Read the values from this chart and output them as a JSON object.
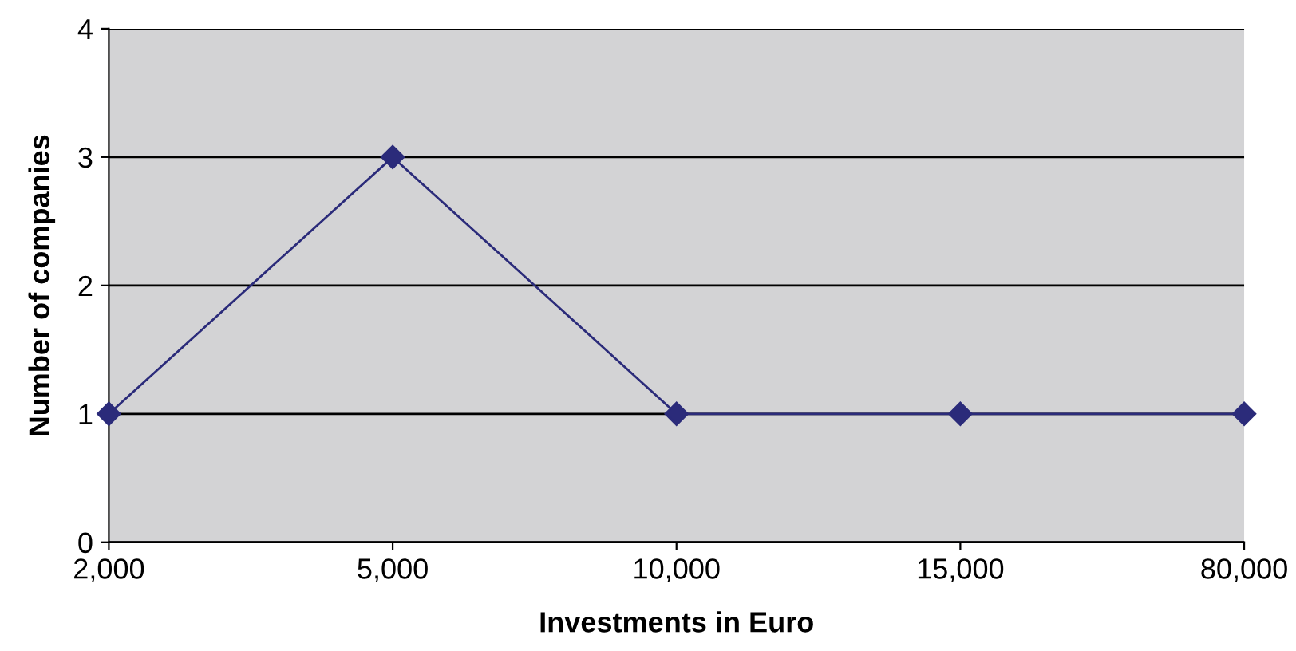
{
  "chart_data": {
    "type": "line",
    "xlabel": "Investments in Euro",
    "ylabel": "Number of companies",
    "categories": [
      "2,000",
      "5,000",
      "10,000",
      "15,000",
      "80,000"
    ],
    "series": [
      {
        "color": "#2b2b7a",
        "values": [
          1,
          3,
          1,
          1,
          1
        ]
      }
    ],
    "ylim": [
      0,
      4
    ],
    "yticks": [
      0,
      1,
      2,
      3,
      4
    ],
    "grid": "y",
    "marker": "diamond",
    "line_style": "solid",
    "legend": false
  }
}
